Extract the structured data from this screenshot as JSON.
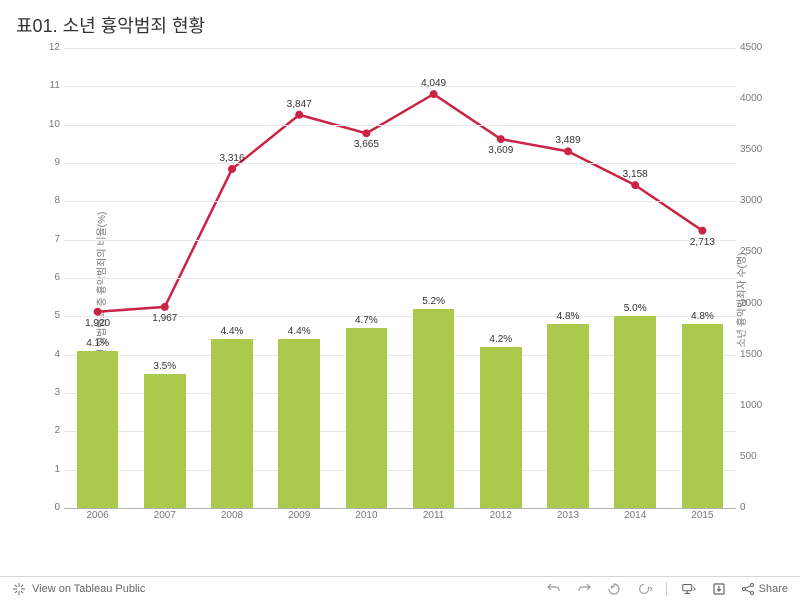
{
  "title": "표01. 소년 흉악범죄 현황",
  "chart": {
    "type": "bar+line",
    "background_color": "#ffffff",
    "grid_color": "#e8e8e8",
    "axis_line_color": "#b0b0b0",
    "tick_font_size": 10,
    "tick_color": "#787878",
    "label_font_size": 10,
    "label_color": "#333333",
    "categories": [
      "2006",
      "2007",
      "2008",
      "2009",
      "2010",
      "2011",
      "2012",
      "2013",
      "2014",
      "2015"
    ],
    "bars": {
      "values": [
        4.1,
        3.5,
        4.4,
        4.4,
        4.7,
        5.2,
        4.2,
        4.8,
        5.0,
        4.8
      ],
      "labels": [
        "4.1%",
        "3.5%",
        "4.4%",
        "4.4%",
        "4.7%",
        "5.2%",
        "4.2%",
        "4.8%",
        "5.0%",
        "4.8%"
      ],
      "color": "#aac94d",
      "bar_width_frac": 0.62
    },
    "line": {
      "values": [
        1920,
        1967,
        3316,
        3847,
        3665,
        4049,
        3609,
        3489,
        3158,
        2713
      ],
      "labels": [
        "1,920",
        "1,967",
        "3,316",
        "3,847",
        "3,665",
        "4,049",
        "3,609",
        "3,489",
        "3,158",
        "2,713"
      ],
      "label_positions": [
        "below",
        "below",
        "above",
        "above",
        "below",
        "above",
        "below",
        "above",
        "above",
        "below"
      ],
      "color": "#cb2343",
      "line_width": 2.5,
      "marker_radius": 4,
      "marker_color": "#cb2343"
    },
    "left_axis": {
      "title": "전체 소년 형법범죄 중 흉악범죄의 비율(%)",
      "min": 0,
      "max": 12,
      "step": 1
    },
    "right_axis": {
      "title": "소년 흉악범죄자 수(명)",
      "min": 0,
      "max": 4500,
      "step": 500
    }
  },
  "toolbar": {
    "view_label": "View on Tableau Public",
    "share_label": "Share"
  }
}
